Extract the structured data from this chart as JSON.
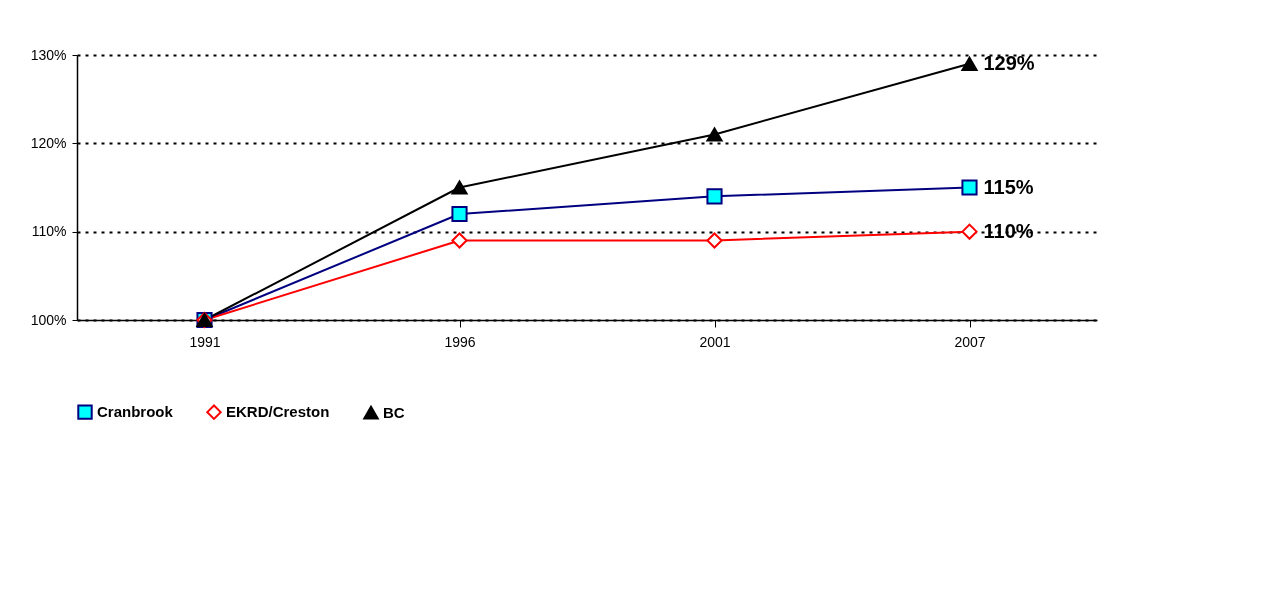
{
  "chart_data": {
    "type": "line",
    "categories": [
      "1991",
      "1996",
      "2001",
      "2007"
    ],
    "series": [
      {
        "name": "Cranbrook",
        "color": "#000080",
        "marker": "square",
        "values": [
          100,
          112,
          114,
          115
        ],
        "value_labels": [
          null,
          null,
          null,
          "115%"
        ]
      },
      {
        "name": "EKRD/Creston",
        "color": "#ff0000",
        "marker": "diamond",
        "values": [
          100,
          109,
          109,
          110
        ],
        "value_labels": [
          null,
          null,
          null,
          "110%"
        ]
      },
      {
        "name": "BC",
        "color": "#000000",
        "marker": "triangle",
        "values": [
          100,
          115,
          121,
          129
        ],
        "value_labels": [
          null,
          null,
          null,
          "129%"
        ]
      }
    ],
    "ylim": [
      100,
      130
    ],
    "yticks": [
      {
        "value": 100,
        "label": "100%"
      },
      {
        "value": 110,
        "label": "110%"
      },
      {
        "value": 120,
        "label": "120%"
      },
      {
        "value": 130,
        "label": "130%"
      }
    ],
    "grid": "y",
    "legend": "bottom"
  }
}
